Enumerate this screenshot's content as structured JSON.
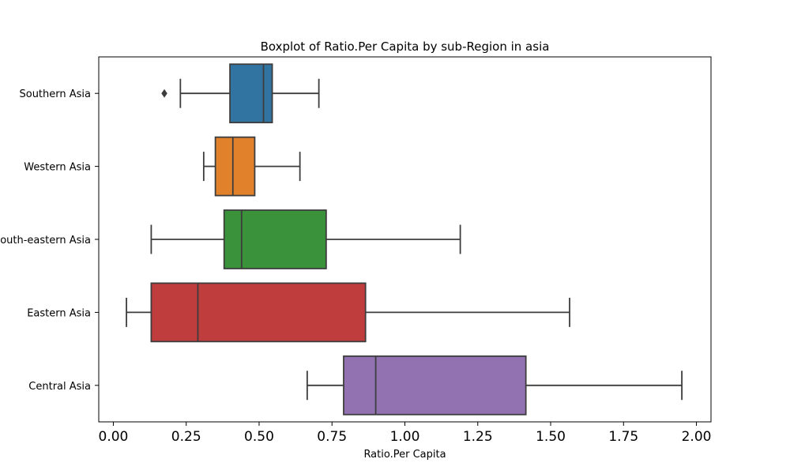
{
  "chart_data": {
    "type": "boxplot",
    "title": "Boxplot of Ratio.Per Capita by sub-Region in asia",
    "xlabel": "Ratio.Per Capita",
    "ylabel": "",
    "xlim": [
      -0.05,
      2.05
    ],
    "xticks": [
      0.0,
      0.25,
      0.5,
      0.75,
      1.0,
      1.25,
      1.5,
      1.75,
      2.0
    ],
    "xtick_labels": [
      "0.00",
      "0.25",
      "0.50",
      "0.75",
      "1.00",
      "1.25",
      "1.50",
      "1.75",
      "2.00"
    ],
    "orientation": "horizontal",
    "grid": false,
    "categories": [
      "Southern Asia",
      "Western Asia",
      "South-eastern Asia",
      "Eastern Asia",
      "Central Asia"
    ],
    "series": [
      {
        "category": "Southern Asia",
        "whisker_low": 0.23,
        "q1": 0.4,
        "median": 0.515,
        "q3": 0.545,
        "whisker_high": 0.705,
        "outliers": [
          0.175
        ],
        "color": "#3274a1"
      },
      {
        "category": "Western Asia",
        "whisker_low": 0.31,
        "q1": 0.35,
        "median": 0.41,
        "q3": 0.485,
        "whisker_high": 0.64,
        "outliers": [],
        "color": "#e1812c"
      },
      {
        "category": "South-eastern Asia",
        "whisker_low": 0.13,
        "q1": 0.38,
        "median": 0.44,
        "q3": 0.73,
        "whisker_high": 1.19,
        "outliers": [],
        "color": "#3a923a"
      },
      {
        "category": "Eastern Asia",
        "whisker_low": 0.045,
        "q1": 0.13,
        "median": 0.29,
        "q3": 0.865,
        "whisker_high": 1.565,
        "outliers": [],
        "color": "#c03d3e"
      },
      {
        "category": "Central Asia",
        "whisker_low": 0.665,
        "q1": 0.79,
        "median": 0.9,
        "q3": 1.415,
        "whisker_high": 1.95,
        "outliers": [],
        "color": "#9372b2"
      }
    ],
    "line_color": "#3d3d3d"
  }
}
